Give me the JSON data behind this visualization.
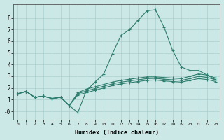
{
  "xlabel": "Humidex (Indice chaleur)",
  "ylabel": "",
  "bg_color": "#cce8e6",
  "grid_color": "#aacfcd",
  "line_color": "#2e7d6e",
  "xlim": [
    -0.5,
    23.5
  ],
  "ylim": [
    -0.7,
    9.2
  ],
  "xticks": [
    0,
    1,
    2,
    3,
    4,
    5,
    6,
    7,
    8,
    9,
    10,
    11,
    12,
    13,
    14,
    15,
    16,
    17,
    18,
    19,
    20,
    21,
    22,
    23
  ],
  "yticks": [
    0,
    1,
    2,
    3,
    4,
    5,
    6,
    7,
    8
  ],
  "ytick_labels": [
    "-0",
    "1",
    "2",
    "3",
    "4",
    "5",
    "6",
    "7",
    "8"
  ],
  "lines": [
    {
      "x": [
        0,
        1,
        2,
        3,
        4,
        5,
        6,
        7,
        8,
        9,
        10,
        11,
        12,
        13,
        14,
        15,
        16,
        17,
        18,
        19,
        20,
        21,
        22,
        23
      ],
      "y": [
        1.5,
        1.7,
        1.2,
        1.3,
        1.1,
        1.2,
        0.5,
        -0.1,
        1.8,
        2.5,
        3.2,
        4.9,
        6.5,
        7.0,
        7.8,
        8.6,
        8.7,
        7.2,
        5.2,
        3.8,
        3.5,
        3.5,
        3.1,
        2.7
      ]
    },
    {
      "x": [
        0,
        1,
        2,
        3,
        4,
        5,
        6,
        7,
        8,
        9,
        10,
        11,
        12,
        13,
        14,
        15,
        16,
        17,
        18,
        19,
        20,
        21,
        22,
        23
      ],
      "y": [
        1.5,
        1.7,
        1.2,
        1.3,
        1.1,
        1.2,
        0.5,
        1.6,
        1.9,
        2.1,
        2.3,
        2.5,
        2.65,
        2.75,
        2.85,
        2.95,
        2.95,
        2.9,
        2.85,
        2.8,
        3.0,
        3.2,
        3.1,
        2.85
      ]
    },
    {
      "x": [
        0,
        1,
        2,
        3,
        4,
        5,
        6,
        7,
        8,
        9,
        10,
        11,
        12,
        13,
        14,
        15,
        16,
        17,
        18,
        19,
        20,
        21,
        22,
        23
      ],
      "y": [
        1.5,
        1.7,
        1.2,
        1.3,
        1.1,
        1.2,
        0.5,
        1.5,
        1.75,
        1.95,
        2.15,
        2.35,
        2.5,
        2.6,
        2.7,
        2.8,
        2.82,
        2.75,
        2.7,
        2.65,
        2.8,
        3.0,
        2.9,
        2.7
      ]
    },
    {
      "x": [
        0,
        1,
        2,
        3,
        4,
        5,
        6,
        7,
        8,
        9,
        10,
        11,
        12,
        13,
        14,
        15,
        16,
        17,
        18,
        19,
        20,
        21,
        22,
        23
      ],
      "y": [
        1.5,
        1.7,
        1.2,
        1.3,
        1.1,
        1.2,
        0.5,
        1.4,
        1.6,
        1.8,
        2.0,
        2.2,
        2.35,
        2.45,
        2.55,
        2.65,
        2.68,
        2.6,
        2.55,
        2.5,
        2.65,
        2.8,
        2.72,
        2.55
      ]
    }
  ]
}
